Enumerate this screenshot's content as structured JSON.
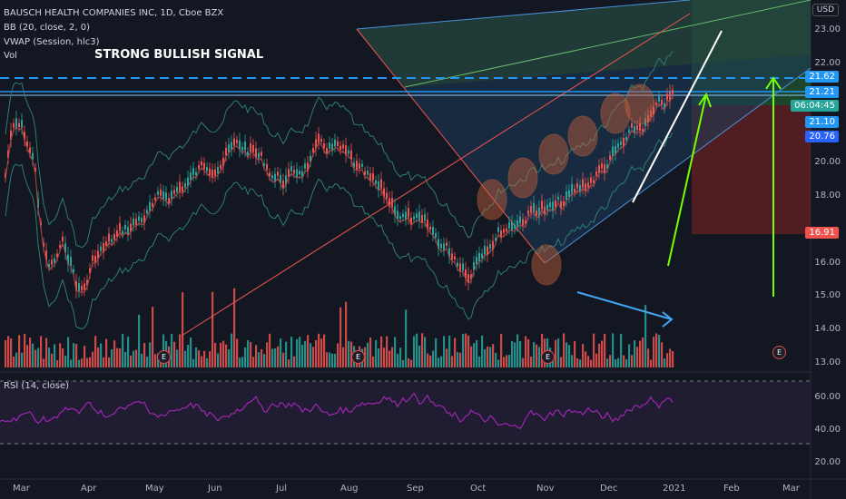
{
  "header": {
    "symbol": "BAUSCH HEALTH COMPANIES INC, 1D, Cboe BZX",
    "bb": "BB (20, close, 2, 0)",
    "vwap": "VWAP (Session, hlc3)",
    "vol": "Vol"
  },
  "annotation": "STRONG BULLISH SIGNAL",
  "currency": "USD",
  "price_axis": [
    "23.00",
    "22.00",
    "21.00",
    "20.00",
    "19.00",
    "18.00",
    "17.00",
    "16.00",
    "15.00",
    "14.00",
    "13.00"
  ],
  "price_tags": {
    "top": "21.62",
    "mid": "21.21",
    "countdown": "06:04:45",
    "close": "21.10",
    "low_line": "20.76",
    "stop": "16.91"
  },
  "x_axis": [
    "Mar",
    "Apr",
    "May",
    "Jun",
    "Jul",
    "Aug",
    "Sep",
    "Oct",
    "Nov",
    "Dec",
    "2021",
    "Feb",
    "Mar"
  ],
  "earnings": [
    "E",
    "E",
    "E",
    "E"
  ],
  "rsi": {
    "label": "RSI (14, close)",
    "axis": [
      "60.00",
      "40.00",
      "20.00"
    ]
  },
  "colors": {
    "background": "#131722",
    "up": "#26a69a",
    "down": "#ef5350",
    "rsi": "#9c27b0",
    "dashed": "#2196f3",
    "stop_zone": "#5c1f22",
    "target_zone": "#1e4d2b"
  }
}
